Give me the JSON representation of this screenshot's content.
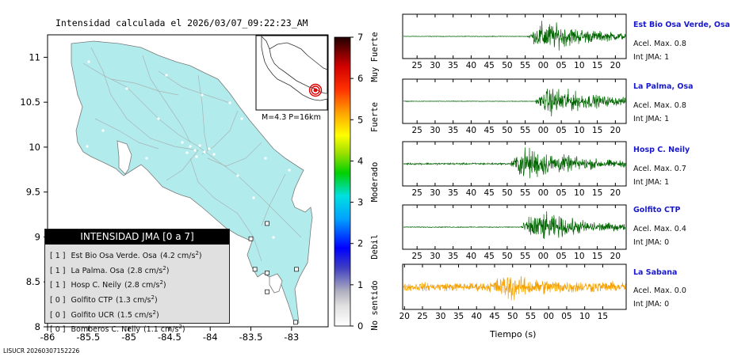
{
  "title": "Intensidad calculada el 2026/03/07_09:22:23_AM",
  "footer": "LISUCR 20260307152226",
  "inset_label": "M=4.3 P=16km",
  "map": {
    "x_ticks": [
      "-86",
      "-85.5",
      "-85",
      "-84.5",
      "-84",
      "-83.5",
      "-83"
    ],
    "y_ticks": [
      "8",
      "8.5",
      "9",
      "9.5",
      "10",
      "10.5",
      "11"
    ],
    "xlim": [
      -86,
      -82.55
    ],
    "ylim": [
      8,
      11.25
    ]
  },
  "legend": {
    "header": "INTENSIDAD JMA [0 a 7]",
    "rows": [
      {
        "intensity": "[ 1 ]",
        "station": "Est Bio Osa Verde. Osa",
        "value": "(4.2 cm/s",
        "sup": "2",
        "close": ")"
      },
      {
        "intensity": "[ 1 ]",
        "station": "La Palma. Osa",
        "value": "(2.8 cm/s",
        "sup": "2",
        "close": ")"
      },
      {
        "intensity": "[ 1 ]",
        "station": "Hosp C. Neily",
        "value": "(2.8 cm/s",
        "sup": "2",
        "close": ")"
      },
      {
        "intensity": "[ 0 ]",
        "station": "Golfito CTP",
        "value": "(1.3 cm/s",
        "sup": "2",
        "close": ")"
      },
      {
        "intensity": "[ 0 ]",
        "station": "Golfito UCR",
        "value": "(1.5 cm/s",
        "sup": "2",
        "close": ")"
      },
      {
        "intensity": "[ 0 ]",
        "station": "Bomberos C. Neily",
        "value": "(1.1 cm/s",
        "sup": "2",
        "close": ")"
      }
    ]
  },
  "colorbar": {
    "ticks": [
      "0",
      "1",
      "2",
      "3",
      "4",
      "5",
      "6",
      "7"
    ],
    "categories": [
      "No sentido",
      "Debil",
      "Moderado",
      "Fuerte",
      "Muy Fuerte"
    ]
  },
  "chart_data": [
    {
      "type": "scatter",
      "x_ticks": [
        -86,
        -85.5,
        -85,
        -84.5,
        -84,
        -83.5,
        -83
      ],
      "y_ticks": [
        8,
        8.5,
        9,
        9.5,
        10,
        10.5,
        11
      ],
      "stations": [
        {
          "name": "Est Bio Osa Verde. Osa",
          "intensity": 1,
          "pga": 4.2
        },
        {
          "name": "La Palma. Osa",
          "intensity": 1,
          "pga": 2.8
        },
        {
          "name": "Hosp C. Neily",
          "intensity": 1,
          "pga": 2.8
        },
        {
          "name": "Golfito CTP",
          "intensity": 0,
          "pga": 1.3
        },
        {
          "name": "Golfito UCR",
          "intensity": 0,
          "pga": 1.5
        },
        {
          "name": "Bomberos C. Neily",
          "intensity": 0,
          "pga": 1.1
        }
      ],
      "markers": [
        {
          "lon": -83.3,
          "lat": 9.15
        },
        {
          "lon": -83.5,
          "lat": 8.98
        },
        {
          "lon": -83.45,
          "lat": 8.64
        },
        {
          "lon": -83.3,
          "lat": 8.6
        },
        {
          "lon": -82.94,
          "lat": 8.64
        },
        {
          "lon": -83.3,
          "lat": 8.39
        },
        {
          "lon": -82.95,
          "lat": 8.05
        }
      ]
    },
    {
      "type": "line",
      "xlabel": "Tiempo (s)",
      "traces": [
        {
          "station": "Est Bio Osa Verde, Osa",
          "acel": "Acel. Max. 0.8",
          "int": "Int JMA: 1",
          "ticks": [
            "25",
            "30",
            "35",
            "40",
            "45",
            "50",
            "55",
            "00",
            "05",
            "10",
            "15",
            "20"
          ],
          "onset": 55.5,
          "amp": 0.95,
          "noise": 0.02,
          "color": "#006400"
        },
        {
          "station": "La Palma, Osa",
          "acel": "Acel. Max. 0.8",
          "int": "Int JMA: 1",
          "ticks": [
            "25",
            "30",
            "35",
            "40",
            "45",
            "50",
            "55",
            "00",
            "05",
            "10",
            "15",
            "20"
          ],
          "onset": 57.5,
          "amp": 0.9,
          "noise": 0.02,
          "color": "#006400"
        },
        {
          "station": "Hosp C. Neily",
          "acel": "Acel. Max. 0.7",
          "int": "Int JMA: 1",
          "ticks": [
            "25",
            "30",
            "35",
            "40",
            "45",
            "50",
            "55",
            "00",
            "05",
            "10",
            "15",
            "20"
          ],
          "onset": 50.5,
          "amp": 1.0,
          "noise": 0.06,
          "color": "#006400"
        },
        {
          "station": "Golfito CTP",
          "acel": "Acel. Max. 0.4",
          "int": "Int JMA: 0",
          "ticks": [
            "25",
            "30",
            "35",
            "40",
            "45",
            "50",
            "55",
            "00",
            "05",
            "10",
            "15",
            "20"
          ],
          "onset": 53.5,
          "amp": 0.95,
          "noise": 0.03,
          "color": "#006400"
        },
        {
          "station": "La Sabana",
          "acel": "Acel. Max. 0.0",
          "int": "Int JMA: 0",
          "ticks": [
            "20",
            "25",
            "30",
            "35",
            "40",
            "45",
            "50",
            "55",
            "00",
            "05",
            "10",
            "15"
          ],
          "onset": 43,
          "amp": 0.45,
          "noise": 0.28,
          "color": "#f5a000"
        }
      ]
    }
  ]
}
